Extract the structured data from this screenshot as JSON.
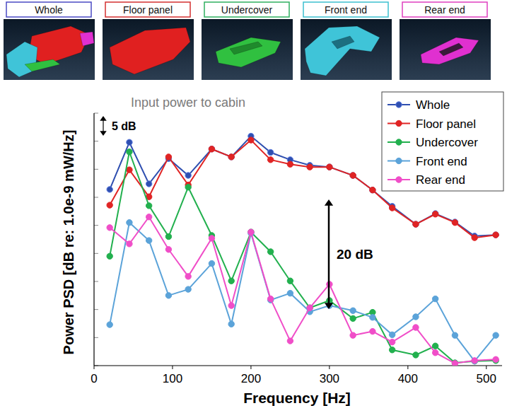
{
  "header": {
    "panels": [
      "Whole",
      "Floor panel",
      "Undercover",
      "Front end",
      "Rear end"
    ]
  },
  "chart_data": {
    "type": "line",
    "title": "Input power to cabin",
    "x_label": "Frequency [Hz]",
    "y_label": "Power PSD [dB re: 1.0e-9 mW/Hz]",
    "annotations": [
      "5 dB",
      "20 dB"
    ],
    "x": [
      20,
      45,
      70,
      95,
      120,
      150,
      175,
      200,
      225,
      250,
      275,
      300,
      330,
      355,
      380,
      410,
      435,
      460,
      485,
      512
    ],
    "series": [
      {
        "name": "Whole",
        "color": "#2f4fb0",
        "marker": "circle",
        "values": [
          31.4,
          39.8,
          32.4,
          36.9,
          33.9,
          38.6,
          37.2,
          40.9,
          38.0,
          36.7,
          35.7,
          35.4,
          33.9,
          31.3,
          28.4,
          25.2,
          27.1,
          25.6,
          23.1,
          23.3
        ]
      },
      {
        "name": "Floor panel",
        "color": "#e02424",
        "marker": "circle",
        "values": [
          28.6,
          34.9,
          30.1,
          37.2,
          32.2,
          38.6,
          37.2,
          40.2,
          36.7,
          35.9,
          35.4,
          35.4,
          33.9,
          31.3,
          28.1,
          25.2,
          27.0,
          25.5,
          22.8,
          23.3
        ]
      },
      {
        "name": "Undercover",
        "color": "#22b04e",
        "marker": "circle",
        "values": [
          19.5,
          38.1,
          28.5,
          23.0,
          31.8,
          23.2,
          15.1,
          23.8,
          20.3,
          15.1,
          10.3,
          11.6,
          8.4,
          9.5,
          2.8,
          1.9,
          3.5,
          0.5,
          0.8,
          0.9
        ]
      },
      {
        "name": "Front end",
        "color": "#5ba3d9",
        "marker": "circle",
        "values": [
          7.3,
          25.5,
          22.3,
          12.5,
          13.6,
          18.2,
          7.4,
          23.6,
          11.7,
          12.9,
          9.6,
          10.7,
          9.8,
          8.6,
          5.5,
          8.7,
          11.9,
          5.4,
          0.8,
          5.4
        ]
      },
      {
        "name": "Rear end",
        "color": "#f04ec8",
        "marker": "circle",
        "values": [
          24.6,
          21.7,
          26.5,
          20.7,
          15.9,
          22.7,
          10.7,
          23.8,
          11.9,
          4.4,
          10.3,
          14.5,
          5.4,
          6.1,
          4.2,
          6.8,
          2.3,
          0.4,
          0.9,
          1.1
        ]
      }
    ],
    "xlim": [
      0,
      520
    ],
    "xticks": [
      0,
      100,
      200,
      300,
      400,
      500
    ],
    "ylim": [
      0,
      45
    ],
    "yticks": [
      0,
      5,
      10,
      15,
      20,
      25,
      30,
      35,
      40,
      45
    ],
    "tick_labels": "x",
    "grid": false,
    "legend": "upper right"
  }
}
